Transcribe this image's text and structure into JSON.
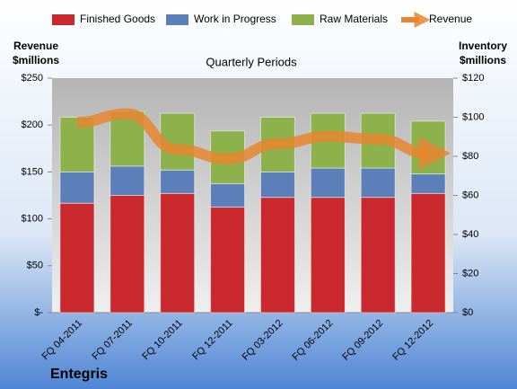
{
  "chart_data": {
    "type": "bar",
    "stacked": true,
    "title": "Quarterly Periods",
    "y_label": "Revenue $millions",
    "y2_label": "Inventory $millions",
    "footer": "Entegris",
    "categories": [
      "FQ 04-2011",
      "FQ 07-2011",
      "FQ 10-2011",
      "FQ 12-2011",
      "FQ 03-2012",
      "FQ 06-2012",
      "FQ 09-2012",
      "FQ 12-2012"
    ],
    "series": [
      {
        "name": "Finished Goods",
        "color": "#c9282d",
        "axis": "y2",
        "values": [
          56,
          60,
          61,
          54,
          59,
          59,
          59,
          61
        ]
      },
      {
        "name": "Work in Progress",
        "color": "#5b7fb9",
        "axis": "y2",
        "values": [
          16,
          15,
          12,
          12,
          13,
          15,
          15,
          10
        ]
      },
      {
        "name": "Raw Materials",
        "color": "#8db14b",
        "axis": "y2",
        "values": [
          28,
          28,
          29,
          27,
          28,
          28,
          28,
          27
        ]
      },
      {
        "name": "Revenue",
        "color": "#e8862f",
        "axis": "y",
        "type": "line",
        "values": [
          203,
          212,
          174,
          164,
          180,
          188,
          185,
          170
        ]
      }
    ],
    "ylim": [
      0,
      250
    ],
    "yticks": [
      {
        "value": 0,
        "label": "$-"
      },
      {
        "value": 50,
        "label": "$50"
      },
      {
        "value": 100,
        "label": "$100"
      },
      {
        "value": 150,
        "label": "$150"
      },
      {
        "value": 200,
        "label": "$200"
      },
      {
        "value": 250,
        "label": "$250"
      }
    ],
    "y2lim": [
      0,
      120
    ],
    "y2ticks": [
      {
        "value": 0,
        "label": "$0"
      },
      {
        "value": 20,
        "label": "$20"
      },
      {
        "value": 40,
        "label": "$40"
      },
      {
        "value": 60,
        "label": "$60"
      },
      {
        "value": 80,
        "label": "$80"
      },
      {
        "value": 100,
        "label": "$100"
      },
      {
        "value": 120,
        "label": "$120"
      }
    ]
  }
}
